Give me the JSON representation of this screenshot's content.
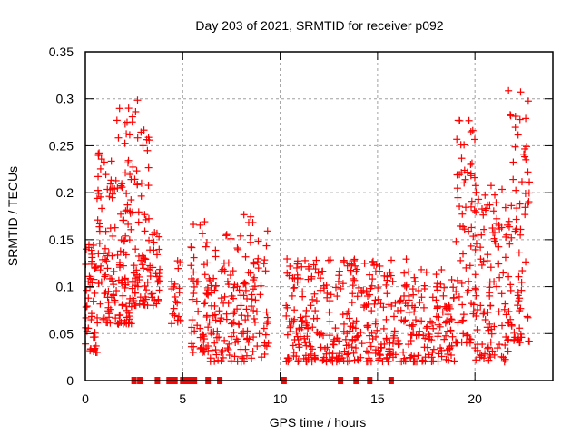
{
  "chart_data": {
    "type": "scatter",
    "title": "Day 203 of 2021, SRMTID for receiver p092",
    "xlabel": "GPS time / hours",
    "ylabel": "SRMTID / TECUs",
    "xlim": [
      0,
      24
    ],
    "ylim": [
      0,
      0.35
    ],
    "xticks": [
      0,
      5,
      10,
      15,
      20
    ],
    "xtick_labels": [
      "0",
      "5",
      "10",
      "15",
      "20"
    ],
    "yticks": [
      0,
      0.05,
      0.1,
      0.15,
      0.2,
      0.25,
      0.3,
      0.35
    ],
    "ytick_labels": [
      "0",
      "0.05",
      "0.1",
      "0.15",
      "0.2",
      "0.25",
      "0.3",
      "0.35"
    ],
    "grid": true,
    "marker": "+",
    "color": "#ff0000",
    "series": [
      {
        "name": "SRMTID",
        "clusters": [
          {
            "x": [
              0.0,
              0.6
            ],
            "y_low": 0.03,
            "y_high": 0.15,
            "count": 45
          },
          {
            "x": [
              0.6,
              1.6
            ],
            "y_low": 0.06,
            "y_high": 0.25,
            "count": 80
          },
          {
            "x": [
              1.6,
              2.4
            ],
            "y_low": 0.06,
            "y_high": 0.31,
            "count": 80
          },
          {
            "x": [
              2.4,
              3.3
            ],
            "y_low": 0.08,
            "y_high": 0.3,
            "count": 70
          },
          {
            "x": [
              3.3,
              3.9
            ],
            "y_low": 0.08,
            "y_high": 0.18,
            "count": 30
          },
          {
            "x": [
              4.4,
              4.9
            ],
            "y_low": 0.06,
            "y_high": 0.13,
            "count": 20
          },
          {
            "x": [
              5.4,
              6.4
            ],
            "y_low": 0.03,
            "y_high": 0.17,
            "count": 60
          },
          {
            "x": [
              6.4,
              7.9
            ],
            "y_low": 0.02,
            "y_high": 0.16,
            "count": 80
          },
          {
            "x": [
              7.9,
              9.4
            ],
            "y_low": 0.02,
            "y_high": 0.18,
            "count": 80
          },
          {
            "x": [
              10.3,
              12.4
            ],
            "y_low": 0.02,
            "y_high": 0.13,
            "count": 120
          },
          {
            "x": [
              12.4,
              14.6
            ],
            "y_low": 0.02,
            "y_high": 0.13,
            "count": 120
          },
          {
            "x": [
              14.6,
              16.8
            ],
            "y_low": 0.02,
            "y_high": 0.13,
            "count": 110
          },
          {
            "x": [
              16.8,
              19.0
            ],
            "y_low": 0.02,
            "y_high": 0.12,
            "count": 110
          },
          {
            "x": [
              19.0,
              20.0
            ],
            "y_low": 0.04,
            "y_high": 0.28,
            "count": 70
          },
          {
            "x": [
              20.0,
              21.7
            ],
            "y_low": 0.02,
            "y_high": 0.21,
            "count": 110
          },
          {
            "x": [
              21.7,
              22.8
            ],
            "y_low": 0.04,
            "y_high": 0.31,
            "count": 80
          }
        ]
      }
    ],
    "zero_markers_x": [
      2.5,
      2.8,
      3.7,
      4.3,
      4.6,
      5.0,
      5.1,
      5.2,
      5.3,
      5.4,
      5.5,
      5.6,
      6.3,
      6.9,
      10.2,
      13.1,
      13.9,
      14.6,
      15.7
    ]
  }
}
